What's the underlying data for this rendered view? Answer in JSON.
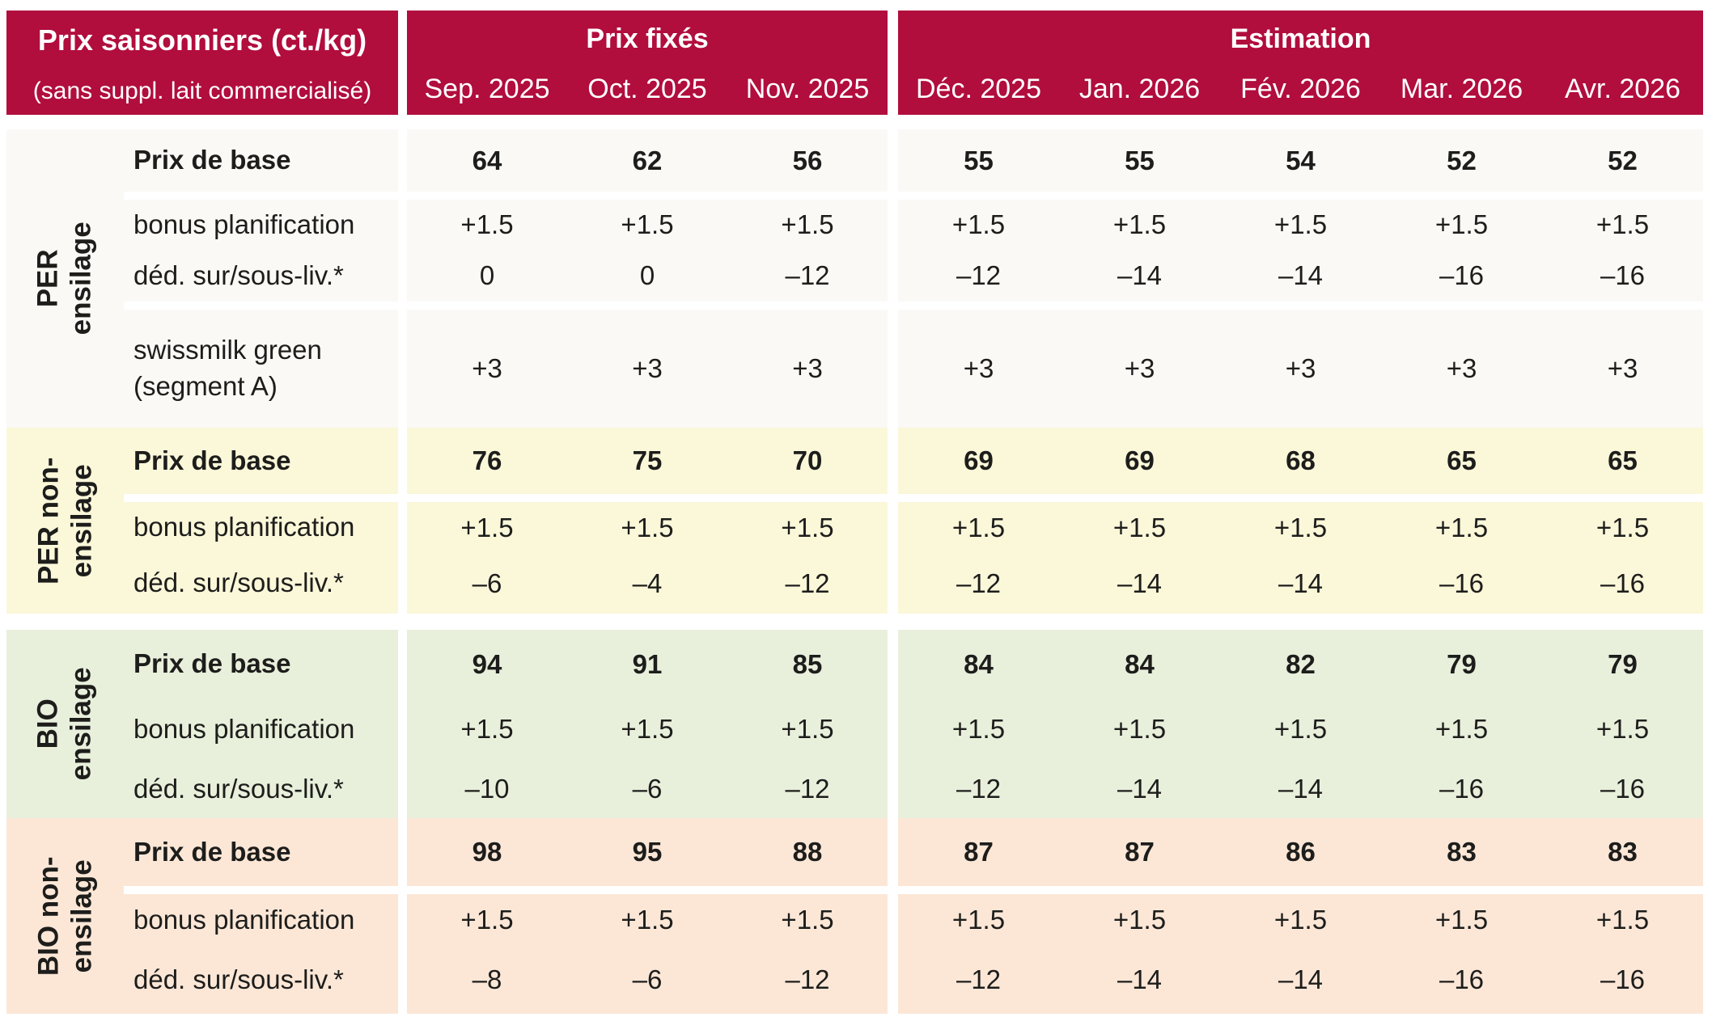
{
  "header": {
    "title": "Prix saisonniers (ct./kg)",
    "subtitle": "(sans suppl. lait commercialisé)",
    "fixed_label": "Prix fixés",
    "estimation_label": "Estimation",
    "fixed_months": [
      "Sep. 2025",
      "Oct. 2025",
      "Nov. 2025"
    ],
    "estimation_months": [
      "Déc. 2025",
      "Jan. 2026",
      "Fév. 2026",
      "Mar. 2026",
      "Avr. 2026"
    ]
  },
  "colors": {
    "header_red": "#B10D3D",
    "text": "#1D1D1B",
    "per_ensilage_bg": "#FAF9F6",
    "per_non_ensilage_bg": "#FBF7D9",
    "bio_ensilage_bg": "#E8F0DC",
    "bio_non_ensilage_bg": "#FCE7D7"
  },
  "sections": [
    {
      "name": "per-ensilage",
      "bg": "#FAF9F6",
      "group_lines": [
        "PER",
        "ensilage"
      ],
      "rows": [
        {
          "label_lines": [
            "Prix de base"
          ],
          "bold": true,
          "values": [
            "64",
            "62",
            "56",
            "55",
            "55",
            "54",
            "52",
            "52"
          ]
        },
        {
          "label_lines": [
            "bonus planification"
          ],
          "bold": false,
          "values": [
            "+1.5",
            "+1.5",
            "+1.5",
            "+1.5",
            "+1.5",
            "+1.5",
            "+1.5",
            "+1.5"
          ]
        },
        {
          "label_lines": [
            "déd. sur/sous-liv.*"
          ],
          "bold": false,
          "values": [
            "0",
            "0",
            "–12",
            "–12",
            "–14",
            "–14",
            "–16",
            "–16"
          ]
        },
        {
          "label_lines": [
            "swissmilk green",
            "(segment A)"
          ],
          "bold": false,
          "values": [
            "+3",
            "+3",
            "+3",
            "+3",
            "+3",
            "+3",
            "+3",
            "+3"
          ]
        }
      ]
    },
    {
      "name": "per-non-ensilage",
      "bg": "#FBF7D9",
      "group_lines": [
        "PER non-",
        "ensilage"
      ],
      "rows": [
        {
          "label_lines": [
            "Prix de base"
          ],
          "bold": true,
          "values": [
            "76",
            "75",
            "70",
            "69",
            "69",
            "68",
            "65",
            "65"
          ]
        },
        {
          "label_lines": [
            "bonus planification"
          ],
          "bold": false,
          "values": [
            "+1.5",
            "+1.5",
            "+1.5",
            "+1.5",
            "+1.5",
            "+1.5",
            "+1.5",
            "+1.5"
          ]
        },
        {
          "label_lines": [
            "déd. sur/sous-liv.*"
          ],
          "bold": false,
          "values": [
            "–6",
            "–4",
            "–12",
            "–12",
            "–14",
            "–14",
            "–16",
            "–16"
          ]
        }
      ]
    },
    {
      "name": "bio-ensilage",
      "bg": "#E8F0DC",
      "group_lines": [
        "BIO",
        "ensilage"
      ],
      "rows": [
        {
          "label_lines": [
            "Prix de base"
          ],
          "bold": true,
          "values": [
            "94",
            "91",
            "85",
            "84",
            "84",
            "82",
            "79",
            "79"
          ]
        },
        {
          "label_lines": [
            "bonus planification"
          ],
          "bold": false,
          "values": [
            "+1.5",
            "+1.5",
            "+1.5",
            "+1.5",
            "+1.5",
            "+1.5",
            "+1.5",
            "+1.5"
          ]
        },
        {
          "label_lines": [
            "déd. sur/sous-liv.*"
          ],
          "bold": false,
          "values": [
            "–10",
            "–6",
            "–12",
            "–12",
            "–14",
            "–14",
            "–16",
            "–16"
          ]
        }
      ]
    },
    {
      "name": "bio-non-ensilage",
      "bg": "#FCE7D7",
      "group_lines": [
        "BIO non-",
        "ensilage"
      ],
      "rows": [
        {
          "label_lines": [
            "Prix de base"
          ],
          "bold": true,
          "values": [
            "98",
            "95",
            "88",
            "87",
            "87",
            "86",
            "83",
            "83"
          ]
        },
        {
          "label_lines": [
            "bonus planification"
          ],
          "bold": false,
          "values": [
            "+1.5",
            "+1.5",
            "+1.5",
            "+1.5",
            "+1.5",
            "+1.5",
            "+1.5",
            "+1.5"
          ]
        },
        {
          "label_lines": [
            "déd. sur/sous-liv.*"
          ],
          "bold": false,
          "values": [
            "–8",
            "–6",
            "–12",
            "–12",
            "–14",
            "–14",
            "–16",
            "–16"
          ]
        }
      ]
    }
  ]
}
